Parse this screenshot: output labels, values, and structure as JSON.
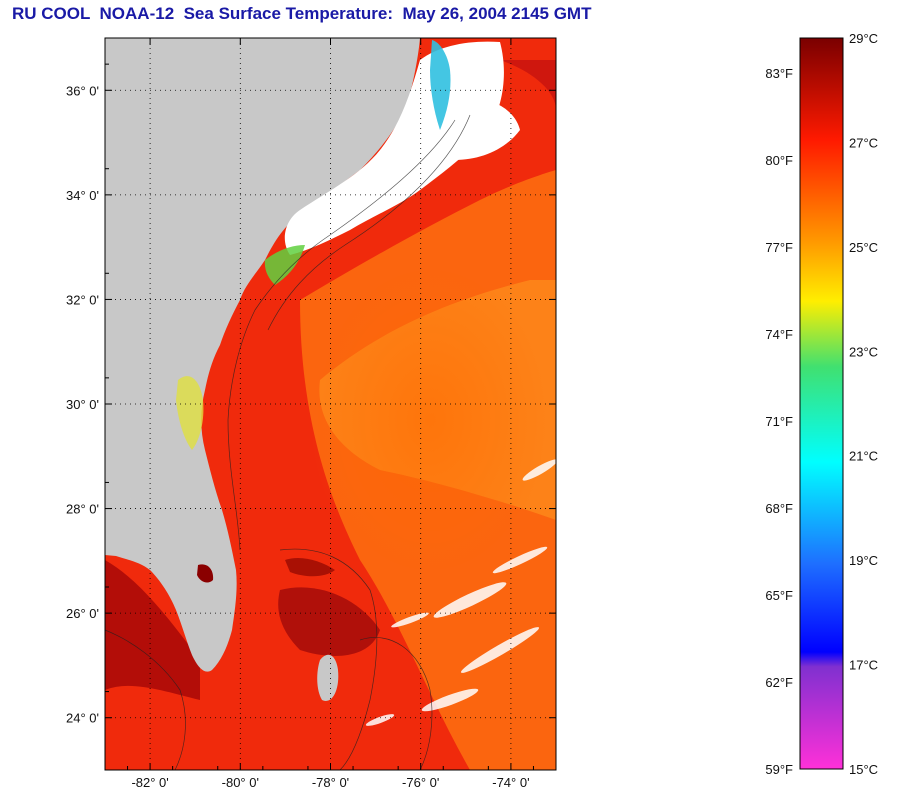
{
  "title": "RU COOL  NOAA-12  Sea Surface Temperature:  May 26, 2004 2145 GMT",
  "map": {
    "lat_ticks": [
      {
        "label": "36° 0'",
        "value": 36
      },
      {
        "label": "34° 0'",
        "value": 34
      },
      {
        "label": "32° 0'",
        "value": 32
      },
      {
        "label": "30° 0'",
        "value": 30
      },
      {
        "label": "28° 0'",
        "value": 28
      },
      {
        "label": "26° 0'",
        "value": 26
      },
      {
        "label": "24° 0'",
        "value": 24
      }
    ],
    "lon_ticks": [
      {
        "label": "-82° 0'",
        "value": -82
      },
      {
        "label": "-80° 0'",
        "value": -80
      },
      {
        "label": "-78° 0'",
        "value": -78
      },
      {
        "label": "-76° 0'",
        "value": -76
      },
      {
        "label": "-74° 0'",
        "value": -74
      }
    ],
    "lat_range": [
      23,
      37
    ],
    "lon_range": [
      -83,
      -73
    ],
    "grid": true,
    "land_color": "#c8c8c8",
    "cloud_color": "#ffffff"
  },
  "colorbar": {
    "fahrenheit": [
      "83°F",
      "80°F",
      "77°F",
      "74°F",
      "71°F",
      "68°F",
      "65°F",
      "62°F",
      "59°F"
    ],
    "celsius": [
      "29°C",
      "27°C",
      "25°C",
      "23°C",
      "21°C",
      "19°C",
      "17°C",
      "15°C"
    ],
    "celsius_range": [
      15,
      29
    ],
    "colors": {
      "c29": "#7a0000",
      "c27": "#ff1a00",
      "c25": "#ff9a00",
      "c24": "#ffee00",
      "c22": "#40e070",
      "c20": "#00ffff",
      "c18": "#1e6eff",
      "c17": "#0000ff",
      "c16": "#8030d0",
      "c15": "#ff30d8"
    }
  }
}
